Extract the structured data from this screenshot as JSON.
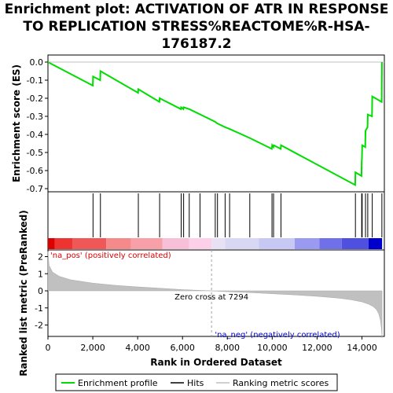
{
  "chart_data": {
    "type": "line",
    "title_lines": [
      "Enrichment plot: ACTIVATION OF ATR IN RESPONSE",
      "TO REPLICATION STRESS%REACTOME%R-HSA-",
      "176187.2"
    ],
    "top_panel": {
      "ylabel": "Enrichment score (ES)",
      "ylim": [
        -0.72,
        0.03
      ],
      "yticks": [
        0.0,
        -0.1,
        -0.2,
        -0.3,
        -0.4,
        -0.5,
        -0.6,
        -0.7
      ],
      "ytick_labels": [
        "0.0",
        "-0.1",
        "-0.2",
        "-0.3",
        "-0.4",
        "-0.5",
        "-0.6",
        "-0.7"
      ],
      "series": [
        {
          "name": "Enrichment profile",
          "color": "#00dd00",
          "x": [
            0,
            2000,
            2010,
            2330,
            2340,
            4020,
            4030,
            4970,
            4980,
            5930,
            5940,
            6040,
            6050,
            6300,
            7450,
            7560,
            7900,
            8100,
            9000,
            9980,
            10000,
            10050,
            10070,
            10380,
            10390,
            13700,
            13710,
            13980,
            13990,
            14000,
            14010,
            14150,
            14160,
            14250,
            14260,
            14450,
            14460,
            14880,
            14890
          ],
          "y": [
            0.0,
            -0.13,
            -0.08,
            -0.1,
            -0.05,
            -0.17,
            -0.15,
            -0.22,
            -0.2,
            -0.26,
            -0.25,
            -0.26,
            -0.25,
            -0.26,
            -0.33,
            -0.34,
            -0.36,
            -0.37,
            -0.42,
            -0.48,
            -0.46,
            -0.47,
            -0.46,
            -0.48,
            -0.46,
            -0.68,
            -0.61,
            -0.63,
            -0.55,
            -0.53,
            -0.46,
            -0.47,
            -0.38,
            -0.36,
            -0.29,
            -0.3,
            -0.19,
            -0.22,
            0.0
          ]
        }
      ]
    },
    "hits": {
      "name": "Hits",
      "positions": [
        2010,
        2340,
        4030,
        4980,
        5940,
        6050,
        6300,
        6780,
        7460,
        7560,
        7900,
        8100,
        9000,
        9990,
        10060,
        10390,
        13710,
        13990,
        14010,
        14160,
        14260,
        14460,
        14890
      ]
    },
    "ranking_panel": {
      "ylabel": "Ranked list metric (PreRanked)",
      "xlabel": "Rank in Ordered Dataset",
      "xlim": [
        0,
        15000
      ],
      "xticks": [
        0,
        2000,
        4000,
        6000,
        8000,
        10000,
        12000,
        14000
      ],
      "xtick_labels": [
        "0",
        "2,000",
        "4,000",
        "6,000",
        "8,000",
        "10,000",
        "12,000",
        "14,000"
      ],
      "ylim": [
        -2.8,
        2.4
      ],
      "yticks": [
        2,
        1,
        0,
        -1,
        -2
      ],
      "ytick_labels": [
        "2",
        "1",
        "0",
        "-1",
        "-2"
      ],
      "n_genes": 14900,
      "zero_cross": 7294,
      "zero_cross_label": "Zero cross at 7294",
      "pos_label": "'na_pos' (positively correlated)",
      "neg_label": "'na_neg' (negatively correlated)",
      "pos_color": "#dd0000",
      "neg_color": "#0000cc",
      "fill_color": "#c0c0c0",
      "metric_curve": {
        "x": [
          0,
          50,
          200,
          500,
          1000,
          2000,
          3000,
          4000,
          5000,
          6000,
          7294,
          8000,
          9000,
          10000,
          11000,
          12000,
          13000,
          13500,
          14000,
          14300,
          14500,
          14650,
          14750,
          14820,
          14870,
          14900
        ],
        "y": [
          2.3,
          1.5,
          1.1,
          0.85,
          0.65,
          0.45,
          0.32,
          0.23,
          0.15,
          0.07,
          0.0,
          -0.05,
          -0.1,
          -0.17,
          -0.24,
          -0.32,
          -0.43,
          -0.52,
          -0.65,
          -0.78,
          -0.92,
          -1.1,
          -1.35,
          -1.7,
          -2.2,
          -2.75
        ]
      }
    },
    "legend": {
      "items": [
        "Enrichment profile",
        "Hits",
        "Ranking metric scores"
      ]
    }
  }
}
